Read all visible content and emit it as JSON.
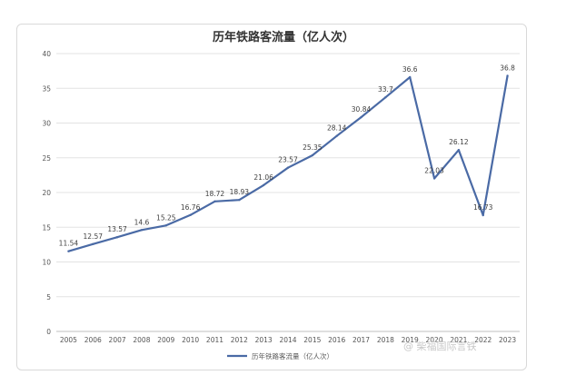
{
  "chart_data": {
    "type": "line",
    "title": "历年铁路客流量（亿人次）",
    "categories": [
      "2005",
      "2006",
      "2007",
      "2008",
      "2009",
      "2010",
      "2011",
      "2012",
      "2013",
      "2014",
      "2015",
      "2016",
      "2017",
      "2018",
      "2019",
      "2020",
      "2021",
      "2022",
      "2023"
    ],
    "series": [
      {
        "name": "历年铁路客流量（亿人次）",
        "values": [
          11.54,
          12.57,
          13.57,
          14.6,
          15.25,
          16.76,
          18.72,
          18.93,
          21.06,
          23.57,
          25.35,
          28.14,
          30.84,
          33.7,
          36.6,
          22.03,
          26.12,
          16.73,
          36.8
        ],
        "labels": [
          "11.54",
          "12.57",
          "13.57",
          "14.6",
          "15.25",
          "16.76",
          "18.72",
          "18.93",
          "21.06",
          "23.57",
          "25.35",
          "28.14",
          "30.84",
          "33.7",
          "36.6",
          "22.03",
          "26.12",
          "16.73",
          "36.8"
        ]
      }
    ],
    "ylim": [
      0,
      40
    ],
    "yticks": [
      0,
      5,
      10,
      15,
      20,
      25,
      30,
      35,
      40
    ],
    "grid": true,
    "legend": "bottom",
    "line_color": "#4a6aa5"
  },
  "watermark": "@ 柴福国际言铁"
}
